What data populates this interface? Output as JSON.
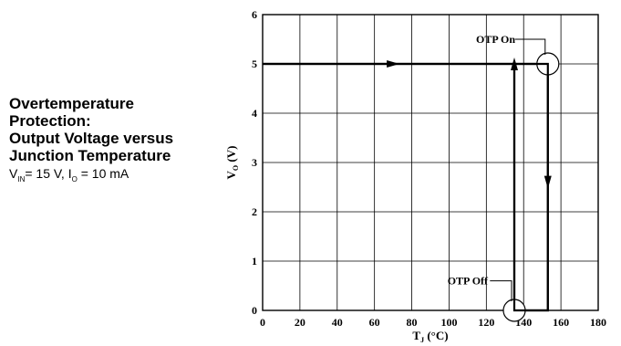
{
  "caption": {
    "lines": [
      "Overtemperature",
      "Protection:",
      "Output Voltage versus",
      "Junction Temperature"
    ],
    "conditions": {
      "vin_symbol": "V",
      "vin_sub": "IN",
      "vin_value": "= 15 V,",
      "io_symbol": "I",
      "io_sub": "O",
      "io_value": "= 10 mA"
    }
  },
  "chart_data": {
    "type": "line",
    "title": "",
    "xlabel": "T",
    "xlabel_sub": "J",
    "xlabel_unit": "(°C)",
    "ylabel": "V",
    "ylabel_sub": "O",
    "ylabel_unit": "(V)",
    "xlim": [
      0,
      180
    ],
    "ylim": [
      0,
      6
    ],
    "xticks": [
      0,
      20,
      40,
      60,
      80,
      100,
      120,
      140,
      160,
      180
    ],
    "yticks": [
      0,
      1,
      2,
      3,
      4,
      5,
      6
    ],
    "grid": true,
    "series": [
      {
        "x": [
          0,
          153,
          153,
          135,
          135
        ],
        "y": [
          5,
          5,
          0,
          0,
          5
        ]
      }
    ],
    "arrows": [
      {
        "x": 70,
        "y": 5,
        "direction": "right"
      },
      {
        "x": 153,
        "y": 2.6,
        "direction": "down"
      },
      {
        "x": 135,
        "y": 5,
        "direction": "up"
      }
    ],
    "annotations": [
      {
        "text": "OTP On",
        "x": 153,
        "y": 5,
        "label_x": 125,
        "label_y": 5.5
      },
      {
        "text": "OTP Off",
        "x": 135,
        "y": 0,
        "label_x": 110,
        "label_y": 0.6
      }
    ]
  }
}
